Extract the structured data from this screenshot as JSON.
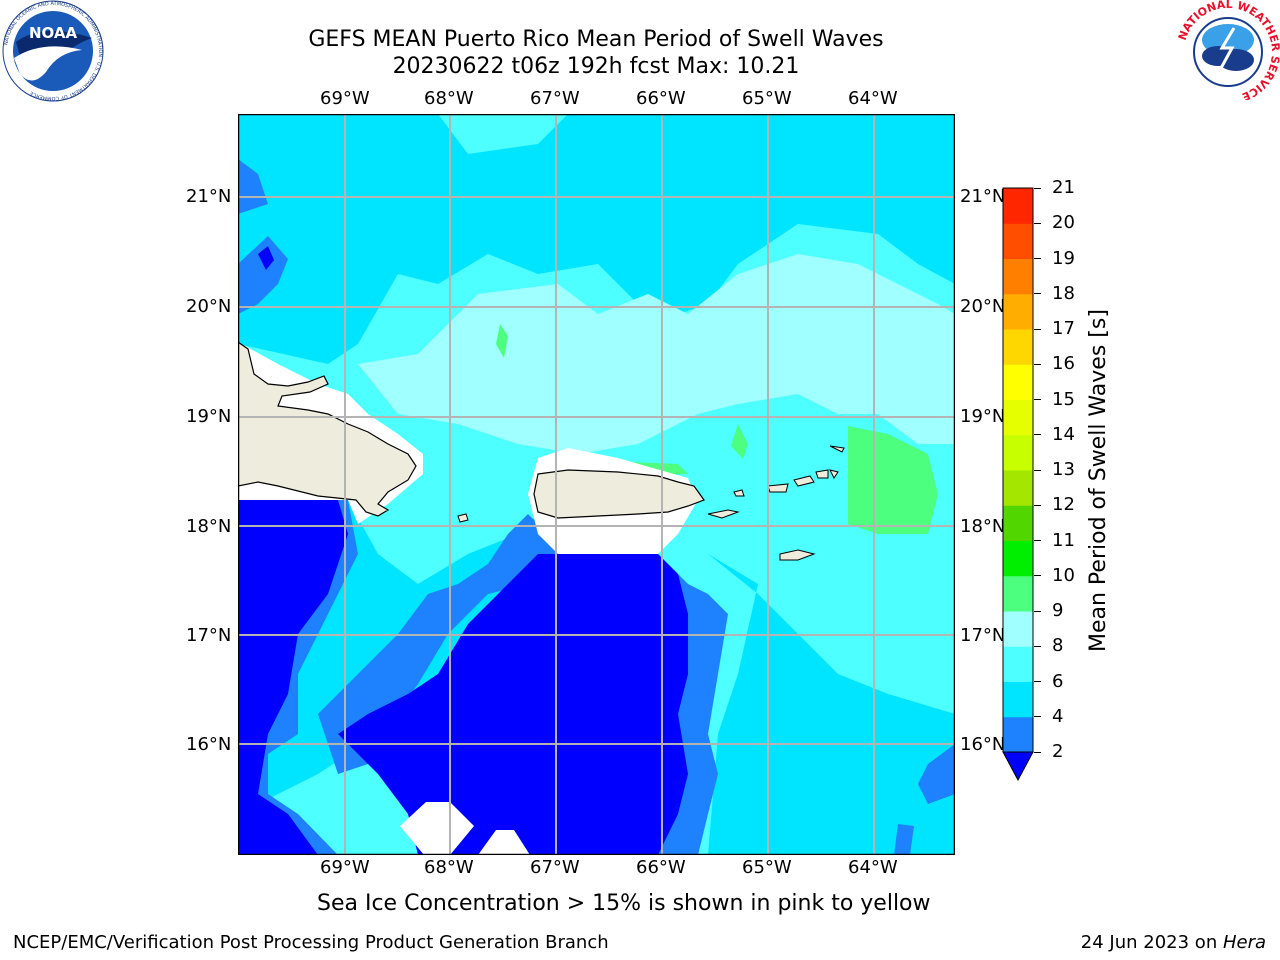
{
  "title": {
    "line1": "GEFS MEAN Puerto Rico Mean Period of Swell Waves",
    "line2": "20230622 t06z 192h fcst   Max: 10.21"
  },
  "map": {
    "lon_labels": [
      "69°W",
      "68°W",
      "67°W",
      "66°W",
      "65°W",
      "64°W"
    ],
    "lat_labels": [
      "21°N",
      "20°N",
      "19°N",
      "18°N",
      "17°N",
      "16°N"
    ],
    "land_color": "#eeecdd",
    "no_data_color": "#ffffff"
  },
  "colorbar": {
    "title": "Mean Period of Swell Waves [s]",
    "ticks": [
      "2",
      "4",
      "6",
      "8",
      "9",
      "10",
      "11",
      "12",
      "13",
      "14",
      "15",
      "16",
      "17",
      "18",
      "19",
      "20",
      "21"
    ],
    "colors": [
      "#0000ff",
      "#1e82ff",
      "#00e5ff",
      "#4dffff",
      "#a0ffff",
      "#4dff7e",
      "#00ee00",
      "#52d600",
      "#a5e600",
      "#c8ff00",
      "#e6ff00",
      "#ffff00",
      "#ffd700",
      "#ffae00",
      "#ff8000",
      "#ff4e00",
      "#ff2600",
      "#ff0000"
    ]
  },
  "caption": "Sea Ice Concentration > 15% is shown in pink to yellow",
  "footer": {
    "left": "NCEP/EMC/Verification Post Processing Product Generation Branch",
    "right_prefix": "24 Jun 2023 on ",
    "right_machine": "Hera"
  },
  "logos": {
    "noaa": "NOAA",
    "noaa_ring": "NATIONAL OCEANIC AND ATMOSPHERIC ADMINISTRATION · U.S. DEPARTMENT OF COMMERCE",
    "nws_ring": "NATIONAL WEATHER SERVICE"
  }
}
